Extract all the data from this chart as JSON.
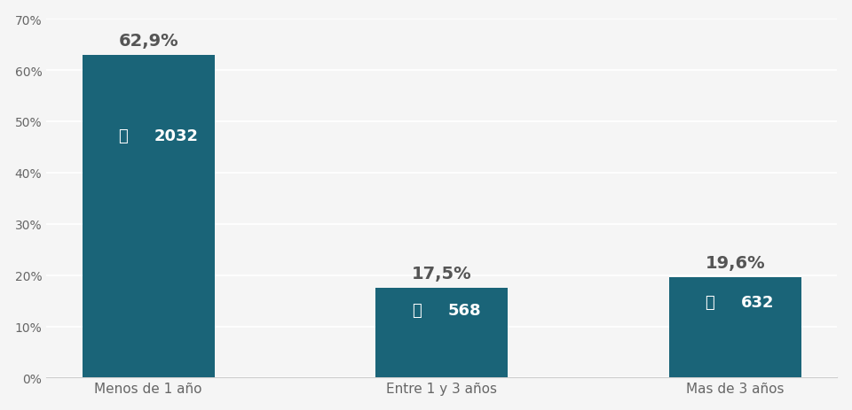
{
  "categories": [
    "Menos de 1 año",
    "Entre 1 y 3 años",
    "Mas de 3 años"
  ],
  "values": [
    62.9,
    17.5,
    19.6
  ],
  "counts": [
    2032,
    568,
    632
  ],
  "bar_color": "#1a6478",
  "background_color": "#f5f5f5",
  "label_color": "#888888",
  "pct_label_color": "#555555",
  "value_label_color": "#ffffff",
  "ylim": [
    0,
    70
  ],
  "yticks": [
    0,
    10,
    20,
    30,
    40,
    50,
    60,
    70
  ],
  "ytick_labels": [
    "0%",
    "10%",
    "20%",
    "30%",
    "40%",
    "50%",
    "60%",
    "70%"
  ],
  "pct_labels": [
    "62,9%",
    "17,5%",
    "19,6%"
  ],
  "count_labels": [
    "2032",
    "568",
    "632"
  ],
  "person_icon": "⧔"
}
